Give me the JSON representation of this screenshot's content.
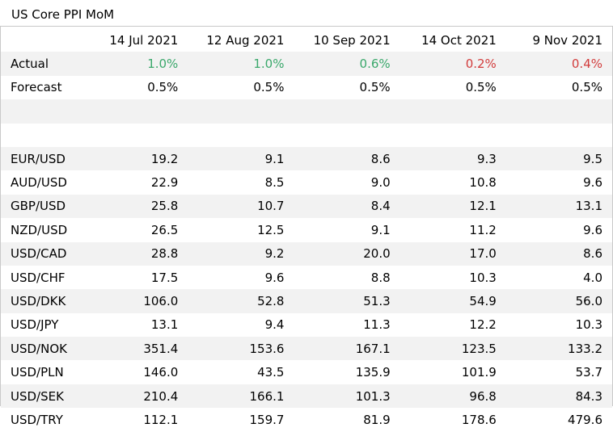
{
  "title": "US Core PPI MoM",
  "chart_data": {
    "type": "table",
    "columns": [
      "14 Jul 2021",
      "12 Aug 2021",
      "10 Sep 2021",
      "14 Oct 2021",
      "9 Nov 2021"
    ],
    "rows": [
      {
        "label": "Actual",
        "values": [
          "1.0%",
          "1.0%",
          "0.6%",
          "0.2%",
          "0.4%"
        ],
        "colors": [
          "#3aa86b",
          "#3aa86b",
          "#3aa86b",
          "#d23c3c",
          "#d23c3c"
        ]
      },
      {
        "label": "Forecast",
        "values": [
          "0.5%",
          "0.5%",
          "0.5%",
          "0.5%",
          "0.5%"
        ]
      },
      {
        "label": "",
        "values": [
          "",
          "",
          "",
          "",
          ""
        ]
      },
      {
        "label": "",
        "values": [
          "",
          "",
          "",
          "",
          ""
        ]
      },
      {
        "label": "EUR/USD",
        "values": [
          "19.2",
          "9.1",
          "8.6",
          "9.3",
          "9.5"
        ]
      },
      {
        "label": "AUD/USD",
        "values": [
          "22.9",
          "8.5",
          "9.0",
          "10.8",
          "9.6"
        ]
      },
      {
        "label": "GBP/USD",
        "values": [
          "25.8",
          "10.7",
          "8.4",
          "12.1",
          "13.1"
        ]
      },
      {
        "label": "NZD/USD",
        "values": [
          "26.5",
          "12.5",
          "9.1",
          "11.2",
          "9.6"
        ]
      },
      {
        "label": "USD/CAD",
        "values": [
          "28.8",
          "9.2",
          "20.0",
          "17.0",
          "8.6"
        ]
      },
      {
        "label": "USD/CHF",
        "values": [
          "17.5",
          "9.6",
          "8.8",
          "10.3",
          "4.0"
        ]
      },
      {
        "label": "USD/DKK",
        "values": [
          "106.0",
          "52.8",
          "51.3",
          "54.9",
          "56.0"
        ]
      },
      {
        "label": "USD/JPY",
        "values": [
          "13.1",
          "9.4",
          "11.3",
          "12.2",
          "10.3"
        ]
      },
      {
        "label": "USD/NOK",
        "values": [
          "351.4",
          "153.6",
          "167.1",
          "123.5",
          "133.2"
        ]
      },
      {
        "label": "USD/PLN",
        "values": [
          "146.0",
          "43.5",
          "135.9",
          "101.9",
          "53.7"
        ]
      },
      {
        "label": "USD/SEK",
        "values": [
          "210.4",
          "166.1",
          "101.3",
          "96.8",
          "84.3"
        ]
      },
      {
        "label": "USD/TRY",
        "values": [
          "112.1",
          "159.7",
          "81.9",
          "178.6",
          "479.6"
        ]
      }
    ],
    "row_shading": "alternating",
    "shade_color": "#f2f2f2",
    "up_color": "#3aa86b",
    "down_color": "#d23c3c"
  }
}
